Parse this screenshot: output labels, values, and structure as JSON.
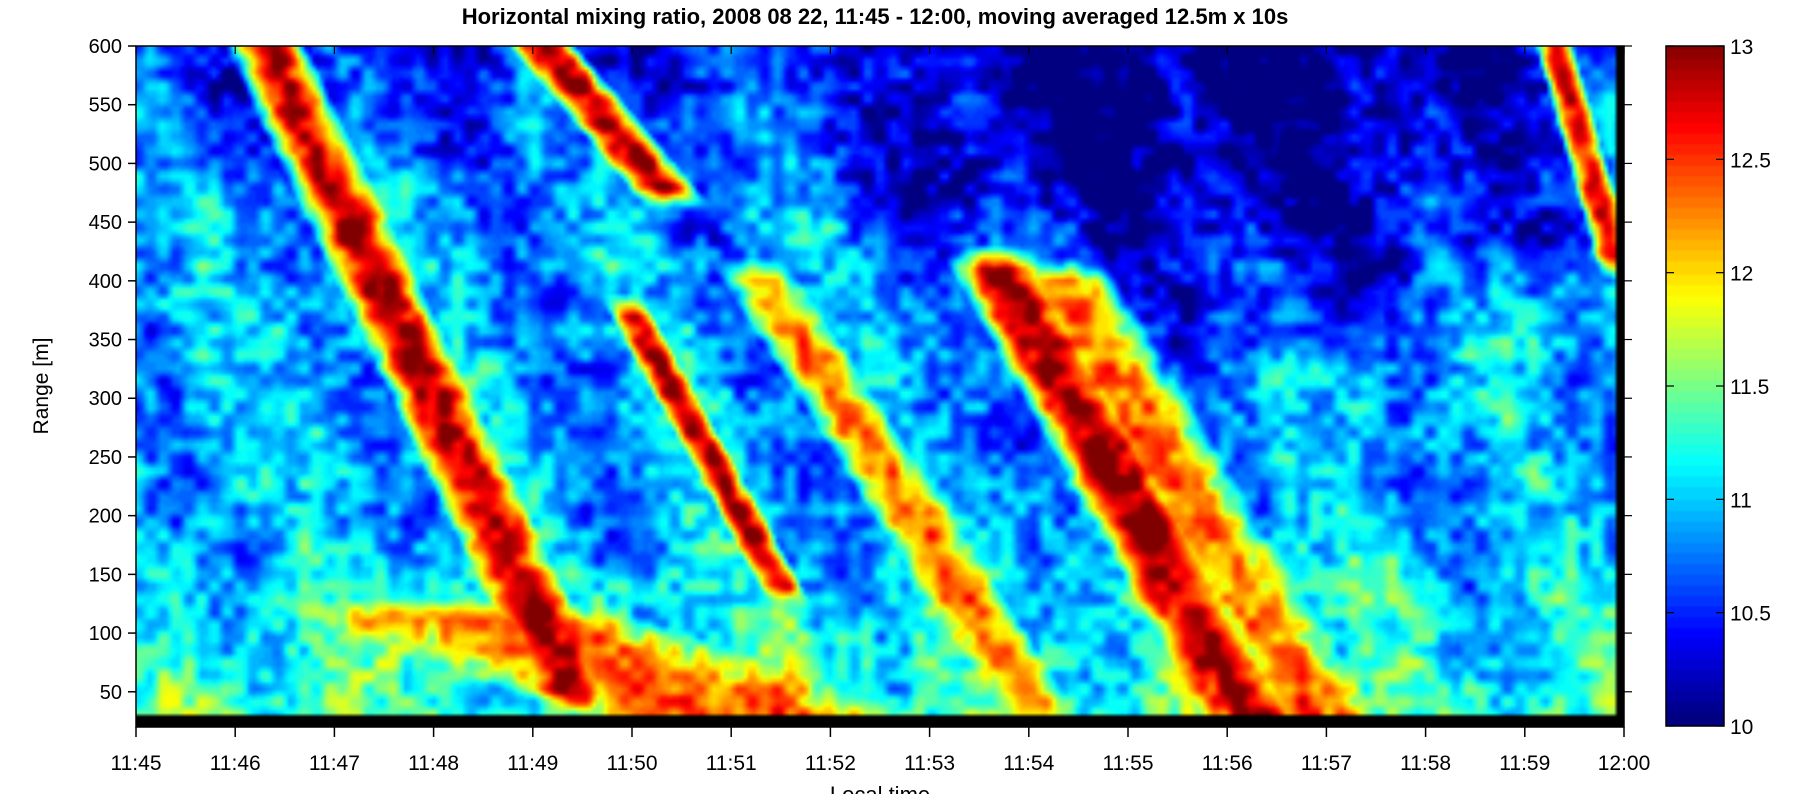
{
  "chart_data": {
    "type": "heatmap",
    "title": "Horizontal mixing ratio, 2008 08 22, 11:45 - 12:00, moving averaged 12.5m x 10s",
    "xlabel": "Local time",
    "ylabel": "Range [m]",
    "x_ticks": [
      "11:45",
      "11:46",
      "11:47",
      "11:48",
      "11:49",
      "11:50",
      "11:51",
      "11:52",
      "11:53",
      "11:54",
      "11:55",
      "11:56",
      "11:57",
      "11:58",
      "11:59",
      "12:00"
    ],
    "x_range_minutes": [
      0,
      15
    ],
    "y_ticks": [
      "50",
      "100",
      "150",
      "200",
      "250",
      "300",
      "350",
      "400",
      "450",
      "500",
      "550",
      "600"
    ],
    "y_range": [
      20,
      600
    ],
    "colorbar": {
      "ticks": [
        "10",
        "10.5",
        "11",
        "11.5",
        "12",
        "12.5",
        "13"
      ],
      "range": [
        10,
        13
      ],
      "colormap": "jet"
    },
    "features": [
      {
        "desc": "high-value plume",
        "value": 12.9,
        "top_min": 1.3,
        "bottom_min": 4.4,
        "top_range": 600,
        "bottom_range": 50,
        "width_min": 0.85
      },
      {
        "desc": "high-value plume",
        "value": 12.9,
        "top_min": 4.1,
        "bottom_min": 5.3,
        "top_range": 600,
        "bottom_range": 480,
        "width_min": 0.7
      },
      {
        "desc": "high-value plume",
        "value": 12.9,
        "top_min": 5.0,
        "bottom_min": 6.5,
        "top_range": 370,
        "bottom_range": 140,
        "width_min": 0.45
      },
      {
        "desc": "warm band",
        "value": 12.3,
        "top_min": 6.3,
        "bottom_min": 9.2,
        "top_range": 400,
        "bottom_range": 20,
        "width_min": 0.8
      },
      {
        "desc": "warm band",
        "value": 12.4,
        "top_min": 3.5,
        "bottom_min": 6.5,
        "top_range": 110,
        "bottom_range": 20,
        "width_min": 3.5
      },
      {
        "desc": "high-value plume",
        "value": 12.95,
        "top_min": 8.7,
        "bottom_min": 11.3,
        "top_range": 410,
        "bottom_range": 20,
        "width_min": 1.0
      },
      {
        "desc": "warm band",
        "value": 12.3,
        "top_min": 9.3,
        "bottom_min": 12.0,
        "top_range": 400,
        "bottom_range": 20,
        "width_min": 1.2
      },
      {
        "desc": "high-value plume",
        "value": 12.8,
        "top_min": 14.3,
        "bottom_min": 14.9,
        "top_range": 600,
        "bottom_range": 420,
        "width_min": 0.4
      }
    ],
    "background": {
      "low_region_value": 10.2,
      "low_region_location": "upper right, 11:52-11:59, 400-600 m",
      "near_surface_value": 11.4,
      "mid_value": 10.9
    },
    "masked_regions": [
      "below 30 m (black)",
      "after 11:59:55 (black)"
    ]
  }
}
